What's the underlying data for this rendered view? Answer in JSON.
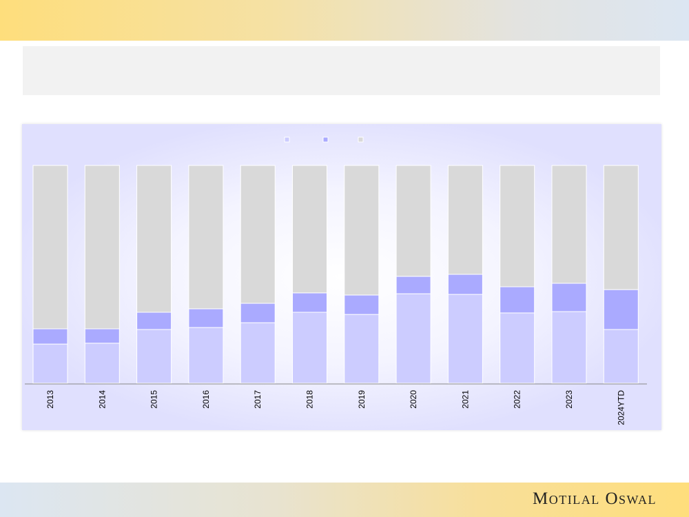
{
  "logo": "Motilal Oswal",
  "chart_data": {
    "type": "bar",
    "stacked": true,
    "percent": true,
    "title": "",
    "categories": [
      "2013",
      "2014",
      "2015",
      "2016",
      "2017",
      "2018",
      "2019",
      "2020",
      "2021",
      "2022",
      "2023",
      "2024YTD"
    ],
    "series": [
      {
        "name": "",
        "color": "#ccccff",
        "values": [
          18,
          18.4,
          24.7,
          25.6,
          27.8,
          32.6,
          31.6,
          41.1,
          40.8,
          32.3,
          32.9,
          24.7
        ]
      },
      {
        "name": "",
        "color": "#aaaaff",
        "values": [
          7,
          6.6,
          7.9,
          8.6,
          8.9,
          8.9,
          8.9,
          8,
          9.2,
          12,
          13,
          18.3
        ]
      },
      {
        "name": "",
        "color": "#d9d9d9",
        "values": [
          75,
          75,
          67.4,
          65.8,
          63.3,
          58.5,
          59.5,
          50.9,
          50,
          55.7,
          54.1,
          57
        ]
      }
    ],
    "ylim": [
      0,
      100
    ],
    "legend": "top-center"
  }
}
